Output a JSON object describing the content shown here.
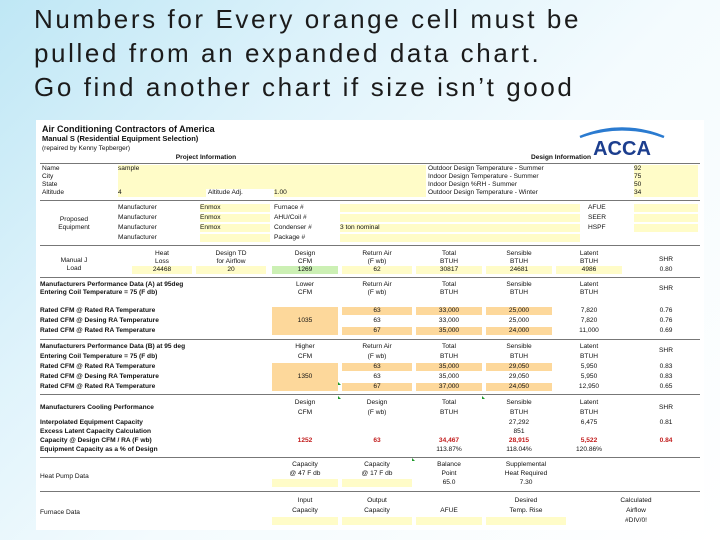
{
  "title_lines": [
    "Numbers for Every orange cell must be",
    "pulled from an expanded data chart.",
    "Go find another chart if size isn’t good"
  ],
  "sheet": {
    "header": {
      "line1": "Air Conditioning Contractors of America",
      "line2": "Manual S (Residential Equipment Selection)",
      "line3": "(repaired by Kenny Tepberger)"
    },
    "logo_text": "ACCA",
    "project": {
      "heading": "Project Information",
      "rows": [
        {
          "label": "Name",
          "value": "sample"
        },
        {
          "label": "City",
          "value": ""
        },
        {
          "label": "State",
          "value": ""
        },
        {
          "label": "Altitude",
          "value": "4",
          "extra_label": "Altitude Adj.",
          "extra_value": "1.00"
        }
      ]
    },
    "design": {
      "heading": "Design Information",
      "rows": [
        {
          "label": "Outdoor Design Temperature - Summer",
          "value": "92"
        },
        {
          "label": "Indoor Design Temperature - Summer",
          "value": "75"
        },
        {
          "label": "Indoor Design %RH - Summer",
          "value": "50"
        },
        {
          "label": "Outdoor Design Temperature - Winter",
          "value": "34"
        }
      ]
    },
    "equipment": {
      "label_lines": [
        "Proposed",
        "Equipment"
      ],
      "rows": [
        {
          "field": "Manufacturer",
          "mfr": "Enmox",
          "type": "Furnace #",
          "model": ""
        },
        {
          "field": "Manufacturer",
          "mfr": "Enmox",
          "type": "AHU/Coil #",
          "model": ""
        },
        {
          "field": "Manufacturer",
          "mfr": "Enmox",
          "type": "Condenser #",
          "model": "3 ton nominal"
        },
        {
          "field": "Manufacturer",
          "mfr": "",
          "type": "Package #",
          "model": ""
        }
      ],
      "ratings": [
        "AFUE",
        "SEER",
        "HSPF"
      ]
    },
    "load": {
      "label_lines": [
        "Manual J",
        "Load"
      ],
      "h1": [
        "Heat",
        "Design TD",
        "Design",
        "Return Air",
        "Total",
        "Sensible",
        "Latent",
        "SHR"
      ],
      "h2": [
        "Loss",
        "for Airflow",
        "CFM",
        "(F wb)",
        "BTUH",
        "BTUH",
        "BTUH",
        ""
      ],
      "values": [
        "24468",
        "20",
        "1269",
        "62",
        "30817",
        "24681",
        "4986",
        "0.80"
      ]
    },
    "perf_a": {
      "heading": "Manufacturers Performance Data (A) at 95deg",
      "coil": "Entering Coil Temperature = 75 (F db)",
      "h1": [
        "Lower",
        "Return Air",
        "Total",
        "Sensible",
        "Latent",
        "SHR"
      ],
      "h2": [
        "CFM",
        "(F wb)",
        "BTUH",
        "BTUH",
        "BTUH",
        ""
      ],
      "cfm": "1035",
      "rows": [
        {
          "label": "Rated CFM @ Rated RA Temperature",
          "wb": "63",
          "total": "33,000",
          "sens": "25,000",
          "lat": "7,820",
          "shr": "0.76"
        },
        {
          "label": "Rated CFM @ Desing RA Temperature",
          "wb": "63",
          "total": "33,000",
          "sens": "25,000",
          "lat": "7,820",
          "shr": "0.76"
        },
        {
          "label": "Rated CFM @ Rated RA Temperature",
          "wb": "67",
          "total": "35,000",
          "sens": "24,000",
          "lat": "11,000",
          "shr": "0.69"
        }
      ]
    },
    "perf_b": {
      "heading": "Manufacturers Performance Data (B) at 95 deg",
      "coil": "Entering Coil Temperature = 75 (F db)",
      "h1": [
        "Higher",
        "Return Air",
        "Total",
        "Sensible",
        "Latent",
        "SHR"
      ],
      "h2": [
        "CFM",
        "(F wb)",
        "BTUH",
        "BTUH",
        "BTUH",
        ""
      ],
      "cfm": "1350",
      "rows": [
        {
          "label": "Rated CFM @ Rated RA Temperature",
          "wb": "63",
          "total": "35,000",
          "sens": "29,050",
          "lat": "5,950",
          "shr": "0.83"
        },
        {
          "label": "Rated CFM @ Desing RA Temperature",
          "wb": "63",
          "total": "35,000",
          "sens": "29,050",
          "lat": "5,950",
          "shr": "0.83"
        },
        {
          "label": "Rated CFM @ Rated RA Temperature",
          "wb": "67",
          "total": "37,000",
          "sens": "24,050",
          "lat": "12,950",
          "shr": "0.65"
        }
      ]
    },
    "cooling": {
      "heading": "Manufacturers Cooling Performance",
      "h1": [
        "Design",
        "Design",
        "Total",
        "Sensible",
        "Latent",
        "SHR"
      ],
      "h2": [
        "CFM",
        "(F wb)",
        "BTUH",
        "BTUH",
        "BTUH",
        ""
      ],
      "rows": [
        {
          "label": "Interpolated Equipment Capacity",
          "cfm": "",
          "wb": "",
          "total": "",
          "sens": "27,292",
          "lat": "6,475",
          "shr": "0.81"
        },
        {
          "label": "Excess Latent Capacity Calculation",
          "cfm": "",
          "wb": "",
          "total": "",
          "sens": "851",
          "lat": "",
          "shr": ""
        },
        {
          "label": "Capacity @ Design CFM / RA (F wb)",
          "cfm": "1252",
          "wb": "63",
          "total": "34,467",
          "sens": "28,915",
          "lat": "5,522",
          "shr": "0.84"
        },
        {
          "label": "Equipment Capacity as a % of Design",
          "cfm": "",
          "wb": "",
          "total": "113.87%",
          "sens": "118.04%",
          "lat": "120.86%",
          "shr": ""
        }
      ]
    },
    "heat_pump": {
      "label": "Heat Pump Data",
      "h1": [
        "Capacity",
        "Capacity",
        "Balance",
        "Supplemental"
      ],
      "h2": [
        "@ 47 F db",
        "@ 17 F db",
        "Point",
        "Heat Required"
      ],
      "values": [
        "",
        "",
        "65.0",
        "7.30"
      ]
    },
    "furnace": {
      "label": "Furnace Data",
      "h1": [
        "Input",
        "Output",
        "",
        "Desired",
        "Calculated"
      ],
      "h2": [
        "Capacity",
        "Capacity",
        "AFUE",
        "Temp. Rise",
        "Airflow"
      ],
      "values": [
        "",
        "",
        "",
        "",
        "#DIV/0!"
      ]
    }
  }
}
